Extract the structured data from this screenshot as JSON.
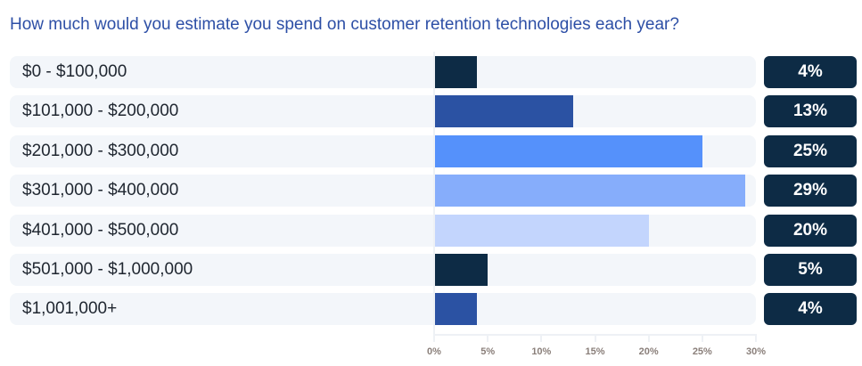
{
  "chart_data": {
    "type": "bar",
    "orientation": "horizontal",
    "title": "How much would you estimate you spend on customer retention technologies each year?",
    "categories": [
      "$0 - $100,000",
      "$101,000 - $200,000",
      "$201,000 - $300,000",
      "$301,000 - $400,000",
      "$401,000 - $500,000",
      "$501,000 - $1,000,000",
      "$1,001,000+"
    ],
    "values": [
      4,
      13,
      25,
      29,
      20,
      5,
      4
    ],
    "data_labels": [
      "4%",
      "13%",
      "25%",
      "29%",
      "20%",
      "5%",
      "4%"
    ],
    "colors": [
      "#0d2b45",
      "#2b52a3",
      "#5591fb",
      "#86adfb",
      "#c3d5fd",
      "#0d2b45",
      "#2b52a3"
    ],
    "xlim": [
      0,
      30
    ],
    "x_ticks": [
      0,
      5,
      10,
      15,
      20,
      25,
      30
    ],
    "x_tick_labels": [
      "0%",
      "5%",
      "10%",
      "15%",
      "20%",
      "25%",
      "30%"
    ],
    "xlabel": "",
    "ylabel": "",
    "grid": false,
    "legend": "none"
  }
}
